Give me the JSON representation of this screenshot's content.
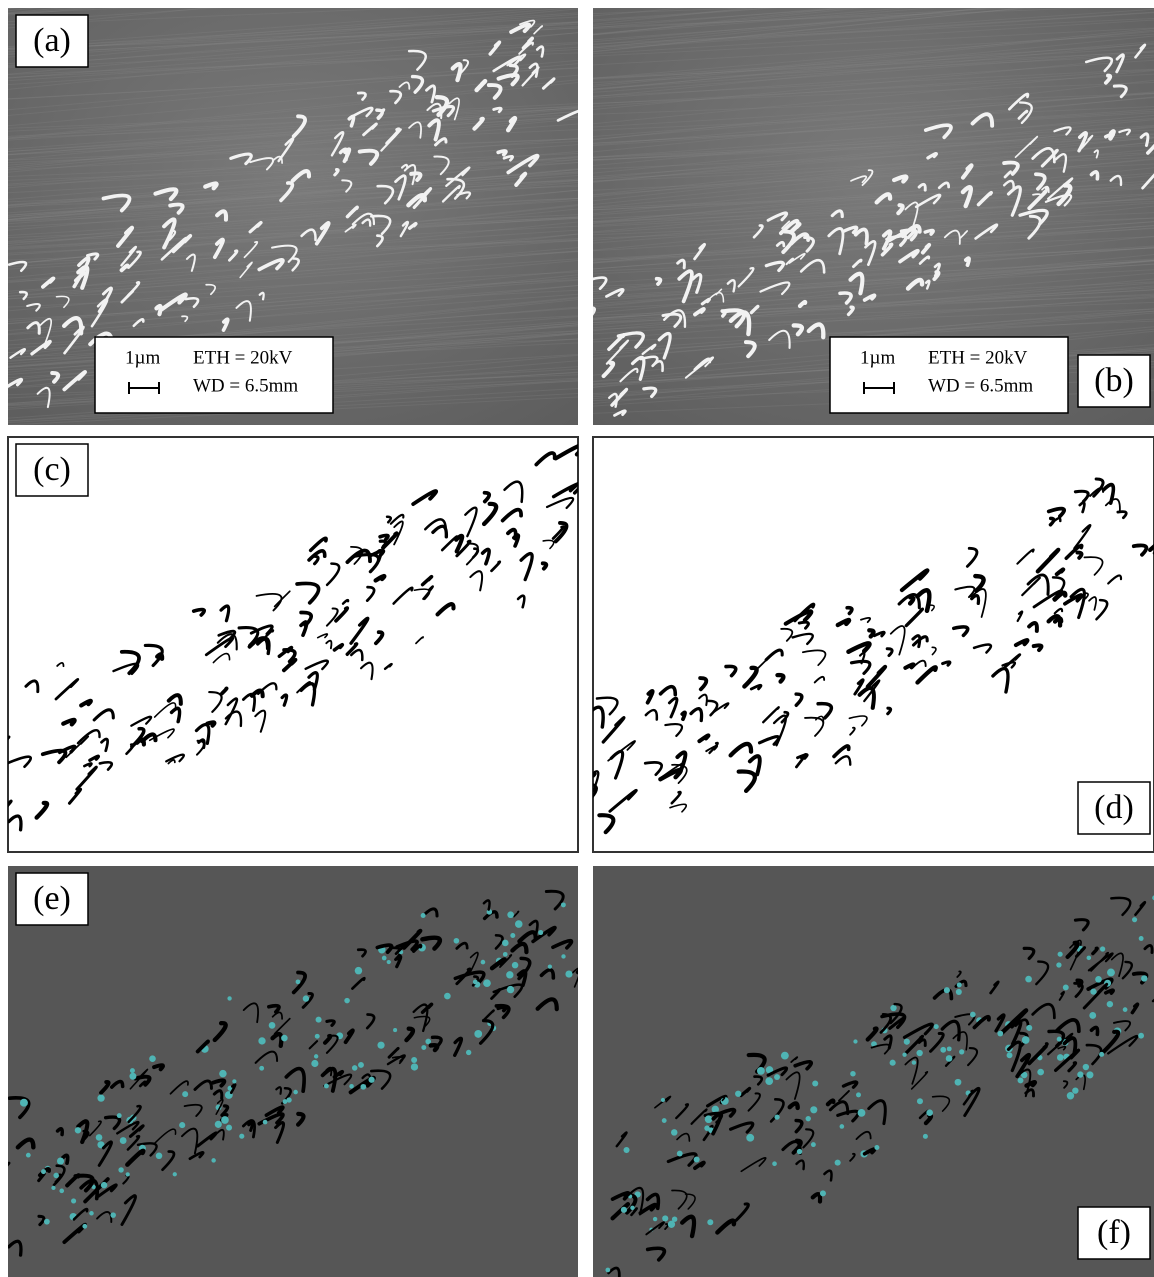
{
  "panels": [
    {
      "label": "(a)",
      "scale": {
        "bar": "1µm",
        "voltage": "ETH = 20kV",
        "distance": "WD = 6.5mm"
      }
    },
    {
      "label": "(b)",
      "scale": {
        "bar": "1µm",
        "voltage": "ETH = 20kV",
        "distance": "WD = 6.5mm"
      }
    },
    {
      "label": "(c)"
    },
    {
      "label": "(d)"
    },
    {
      "label": "(e)"
    },
    {
      "label": "(f)"
    }
  ]
}
